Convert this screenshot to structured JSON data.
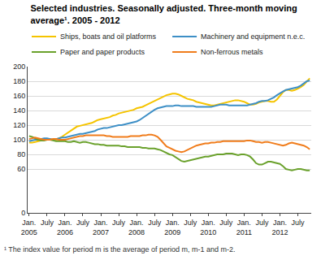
{
  "chart_data": {
    "type": "line",
    "title": "Selected industries. Seasonally adjusted. Three-month moving\naverage¹. 2005 - 2012",
    "annotations": [
      "¹ The index value for period m is the average of period m, m-1 and m-2."
    ],
    "categories": [
      "Jan.\n2005",
      null,
      null,
      null,
      null,
      null,
      "July",
      null,
      null,
      null,
      null,
      null,
      "Jan.\n2006",
      null,
      null,
      null,
      null,
      null,
      "July",
      null,
      null,
      null,
      null,
      null,
      "Jan.\n2007",
      null,
      null,
      null,
      null,
      null,
      "July",
      null,
      null,
      null,
      null,
      null,
      "Jan.\n2008",
      null,
      null,
      null,
      null,
      null,
      "July",
      null,
      null,
      null,
      null,
      null,
      "Jan.\n2009",
      null,
      null,
      null,
      null,
      null,
      "July",
      null,
      null,
      null,
      null,
      null,
      "Jan.\n2010",
      null,
      null,
      null,
      null,
      null,
      "July",
      null,
      null,
      null,
      null,
      null,
      "Jan.\n2011",
      null,
      null,
      null,
      null,
      null,
      "July",
      null,
      null,
      null,
      null,
      null,
      "Jan.\n2012",
      null,
      null,
      null,
      null,
      null,
      "July",
      null,
      null,
      null,
      null
    ],
    "series": [
      {
        "name": "Ships, boats and oil platforms",
        "color": "#f5c400",
        "values": [
          96,
          96,
          97,
          98,
          99,
          100,
          101,
          101,
          100,
          100,
          102,
          104,
          107,
          110,
          113,
          116,
          118,
          119,
          120,
          121,
          122,
          123,
          125,
          127,
          128,
          129,
          130,
          131,
          133,
          134,
          136,
          137,
          138,
          139,
          140,
          141,
          143,
          144,
          145,
          147,
          149,
          151,
          153,
          155,
          157,
          159,
          161,
          162,
          163,
          163,
          162,
          160,
          158,
          156,
          155,
          154,
          152,
          151,
          150,
          149,
          148,
          147,
          147,
          148,
          149,
          150,
          151,
          152,
          153,
          154,
          154,
          153,
          152,
          150,
          148,
          148,
          149,
          151,
          152,
          153,
          153,
          152,
          152,
          155,
          160,
          165,
          168,
          168,
          167,
          168,
          170,
          172,
          175,
          180,
          184
        ]
      },
      {
        "name": "Machinery and equipment n.e.c.",
        "color": "#3d8fc6",
        "values": [
          98,
          99,
          100,
          100,
          101,
          102,
          102,
          101,
          100,
          101,
          102,
          103,
          103,
          104,
          105,
          106,
          107,
          108,
          108,
          109,
          110,
          111,
          112,
          114,
          115,
          116,
          116,
          117,
          118,
          119,
          120,
          120,
          121,
          122,
          123,
          124,
          125,
          127,
          130,
          133,
          136,
          139,
          141,
          143,
          144,
          145,
          146,
          146,
          146,
          147,
          147,
          146,
          146,
          146,
          146,
          146,
          145,
          145,
          145,
          145,
          145,
          145,
          146,
          147,
          148,
          148,
          148,
          147,
          147,
          147,
          147,
          147,
          147,
          147,
          148,
          149,
          150,
          152,
          153,
          153,
          154,
          156,
          158,
          161,
          164,
          166,
          168,
          169,
          170,
          171,
          172,
          174,
          177,
          180,
          181
        ]
      },
      {
        "name": "Paper and paper products",
        "color": "#6aa12c",
        "values": [
          105,
          104,
          102,
          100,
          99,
          99,
          100,
          100,
          99,
          98,
          98,
          98,
          98,
          97,
          97,
          98,
          97,
          96,
          97,
          97,
          96,
          95,
          94,
          94,
          93,
          93,
          92,
          92,
          92,
          92,
          92,
          91,
          91,
          90,
          90,
          90,
          90,
          90,
          89,
          89,
          88,
          88,
          88,
          87,
          86,
          84,
          82,
          80,
          79,
          76,
          73,
          71,
          70,
          71,
          72,
          73,
          74,
          75,
          76,
          77,
          77,
          78,
          79,
          80,
          80,
          80,
          81,
          81,
          81,
          80,
          79,
          80,
          80,
          79,
          77,
          73,
          68,
          66,
          66,
          68,
          70,
          70,
          69,
          68,
          67,
          64,
          60,
          59,
          58,
          59,
          60,
          60,
          59,
          58,
          58
        ]
      },
      {
        "name": "Non-ferrous metals",
        "color": "#f07c1b",
        "values": [
          101,
          102,
          103,
          102,
          101,
          100,
          100,
          100,
          101,
          101,
          100,
          100,
          100,
          101,
          102,
          103,
          104,
          105,
          105,
          106,
          106,
          106,
          106,
          106,
          106,
          106,
          105,
          105,
          104,
          104,
          104,
          104,
          104,
          104,
          105,
          105,
          105,
          105,
          106,
          106,
          107,
          107,
          106,
          104,
          100,
          95,
          91,
          89,
          87,
          85,
          84,
          83,
          84,
          86,
          88,
          90,
          92,
          93,
          94,
          95,
          95,
          96,
          96,
          97,
          97,
          98,
          98,
          98,
          98,
          98,
          98,
          98,
          98,
          99,
          99,
          98,
          97,
          97,
          96,
          97,
          97,
          96,
          95,
          94,
          93,
          92,
          93,
          95,
          96,
          95,
          94,
          93,
          92,
          90,
          87
        ]
      }
    ],
    "ylim": [
      0,
      200
    ],
    "yticks": [
      0,
      60,
      80,
      100,
      120,
      140,
      160,
      180,
      200
    ],
    "grid": true,
    "legend": "top"
  }
}
